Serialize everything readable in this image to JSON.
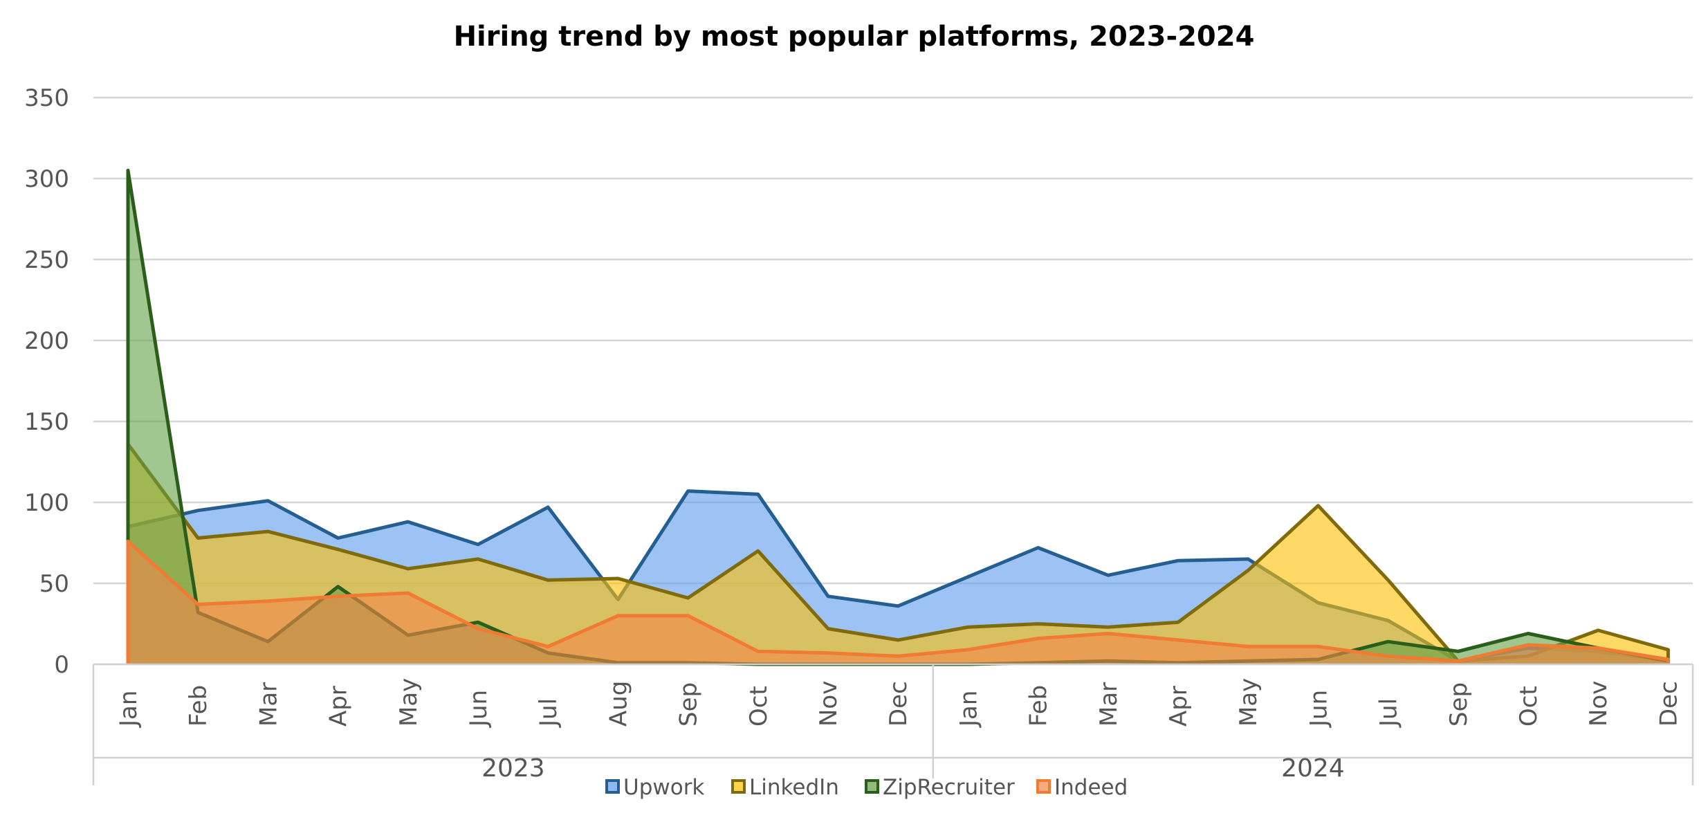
{
  "chart_data": {
    "type": "area",
    "title": "Hiring trend by most popular platforms, 2023-2024",
    "xlabel": "",
    "ylabel": "",
    "ylim": [
      0,
      350
    ],
    "yticks": [
      0,
      50,
      100,
      150,
      200,
      250,
      300,
      350
    ],
    "grid": true,
    "legend_position": "bottom",
    "groups": [
      {
        "label": "2023",
        "categories": [
          "Jan",
          "Feb",
          "Mar",
          "Apr",
          "May",
          "Jun",
          "Jul",
          "Aug",
          "Sep",
          "Oct",
          "Nov",
          "Dec"
        ]
      },
      {
        "label": "2024",
        "categories": [
          "Jan",
          "Feb",
          "Mar",
          "Apr",
          "May",
          "Jun",
          "Jul",
          "Sep",
          "Oct",
          "Nov",
          "Dec"
        ]
      }
    ],
    "series": [
      {
        "name": "Upwork",
        "line_color": "#255e91",
        "fill_color": "#5b9bef",
        "values": [
          85,
          95,
          101,
          78,
          88,
          74,
          97,
          40,
          107,
          105,
          42,
          36,
          54,
          72,
          55,
          64,
          65,
          38,
          27,
          2,
          10,
          8,
          2
        ]
      },
      {
        "name": "LinkedIn",
        "line_color": "#7f6a0c",
        "fill_color": "#ffc000",
        "values": [
          136,
          78,
          82,
          71,
          59,
          65,
          52,
          53,
          41,
          70,
          22,
          15,
          23,
          25,
          23,
          26,
          58,
          98,
          52,
          2,
          5,
          21,
          9
        ]
      },
      {
        "name": "ZipRecruiter",
        "line_color": "#2b5e1a",
        "fill_color": "#62a046",
        "values": [
          305,
          32,
          14,
          48,
          18,
          26,
          7,
          1,
          1,
          0,
          0,
          0,
          0,
          1,
          2,
          1,
          2,
          3,
          14,
          8,
          19,
          10,
          2
        ]
      },
      {
        "name": "Indeed",
        "line_color": "#f07b33",
        "fill_color": "#f4894a",
        "values": [
          76,
          37,
          39,
          42,
          44,
          22,
          11,
          30,
          30,
          8,
          7,
          5,
          9,
          16,
          19,
          15,
          11,
          11,
          5,
          2,
          12,
          10,
          3
        ]
      }
    ]
  }
}
